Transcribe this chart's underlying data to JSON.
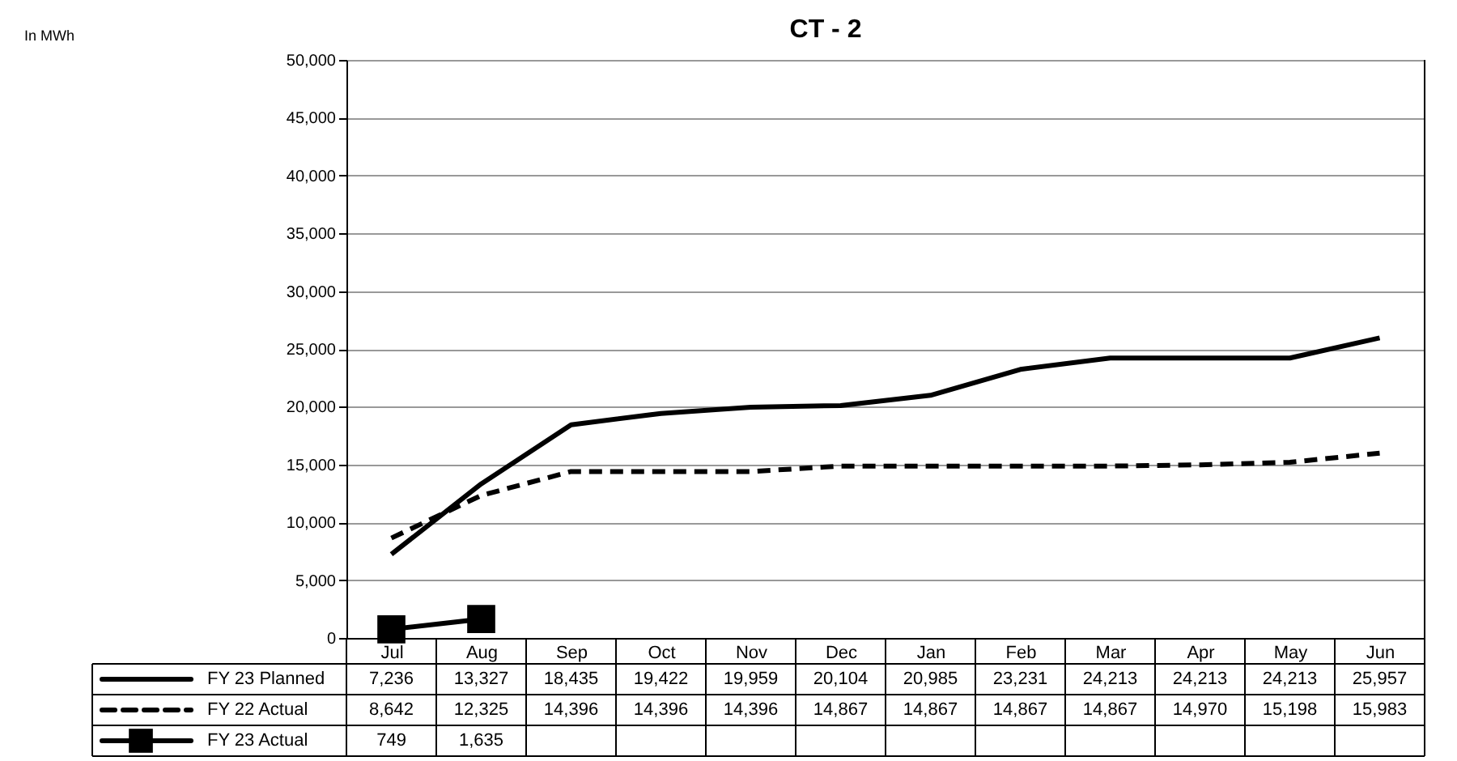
{
  "chart_data": {
    "type": "line",
    "title": "CT - 2",
    "annotations": [
      "In MWh"
    ],
    "categories": [
      "Jul",
      "Aug",
      "Sep",
      "Oct",
      "Nov",
      "Dec",
      "Jan",
      "Feb",
      "Mar",
      "Apr",
      "May",
      "Jun"
    ],
    "series": [
      {
        "name": "FY 23 Planned",
        "color": "#000000",
        "line_style": "solid",
        "marker": "none",
        "values": [
          7236,
          13327,
          18435,
          19422,
          19959,
          20104,
          20985,
          23231,
          24213,
          24213,
          24213,
          25957
        ],
        "value_labels": [
          "7,236",
          "13,327",
          "18,435",
          "19,422",
          "19,959",
          "20,104",
          "20,985",
          "23,231",
          "24,213",
          "24,213",
          "24,213",
          "25,957"
        ]
      },
      {
        "name": "FY 22 Actual",
        "color": "#000000",
        "line_style": "dashed",
        "marker": "none",
        "values": [
          8642,
          12325,
          14396,
          14396,
          14396,
          14867,
          14867,
          14867,
          14867,
          14970,
          15198,
          15983
        ],
        "value_labels": [
          "8,642",
          "12,325",
          "14,396",
          "14,396",
          "14,396",
          "14,867",
          "14,867",
          "14,867",
          "14,867",
          "14,970",
          "15,198",
          "15,983"
        ]
      },
      {
        "name": "FY 23 Actual",
        "color": "#000000",
        "line_style": "solid",
        "marker": "square",
        "values": [
          749,
          1635,
          null,
          null,
          null,
          null,
          null,
          null,
          null,
          null,
          null,
          null
        ],
        "value_labels": [
          "749",
          "1,635",
          null,
          null,
          null,
          null,
          null,
          null,
          null,
          null,
          null,
          null
        ]
      }
    ],
    "ylim": [
      0,
      50000
    ],
    "yticks": [
      0,
      {
        "value": 5000,
        "label": "5,000"
      },
      {
        "value": 10000,
        "label": "10,000"
      },
      {
        "value": 15000,
        "label": "15,000"
      },
      {
        "value": 20000,
        "label": "20,000"
      },
      {
        "value": 25000,
        "label": "25,000"
      },
      {
        "value": 30000,
        "label": "30,000"
      },
      {
        "value": 35000,
        "label": "35,000"
      },
      {
        "value": 40000,
        "label": "40,000"
      },
      {
        "value": 45000,
        "label": "45,000"
      },
      {
        "value": 50000,
        "label": "50,000"
      }
    ],
    "grid": "y",
    "legend": "bottom"
  }
}
